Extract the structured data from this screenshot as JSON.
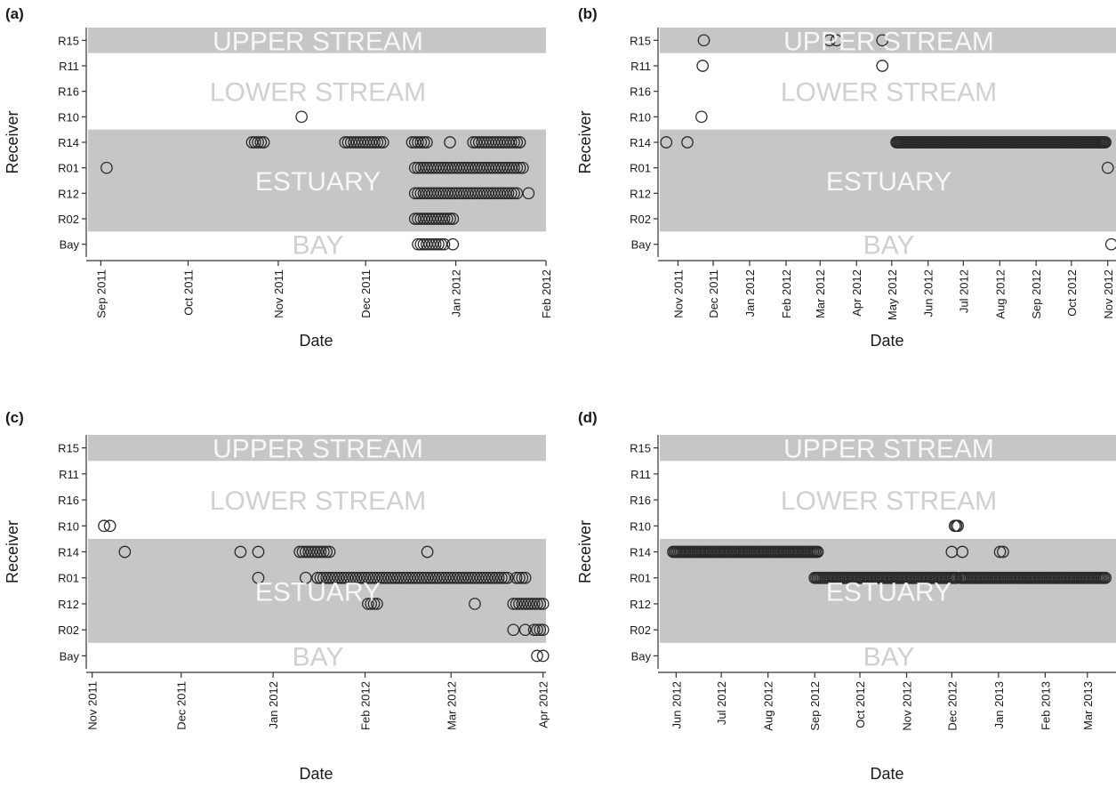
{
  "chart_data": [
    {
      "panel": "(a)",
      "type": "scatter",
      "x_scale": "time",
      "xlabel": "Date",
      "ylabel": "Receiver",
      "receivers": [
        "R15",
        "R11",
        "R16",
        "R10",
        "R14",
        "R01",
        "R12",
        "R02",
        "Bay"
      ],
      "zones": [
        {
          "label": "UPPER STREAM",
          "receivers": [
            "R15"
          ],
          "shaded": true
        },
        {
          "label": "LOWER STREAM",
          "receivers": [
            "R11",
            "R16",
            "R10"
          ],
          "shaded": false
        },
        {
          "label": "ESTUARY",
          "receivers": [
            "R14",
            "R01",
            "R12",
            "R02"
          ],
          "shaded": true
        },
        {
          "label": "BAY",
          "receivers": [
            "Bay"
          ],
          "shaded": false
        }
      ],
      "xlim": [
        "2011-08-27",
        "2012-02-01"
      ],
      "x_ticks": [
        {
          "date": "2011-09-01",
          "label": "Sep 2011"
        },
        {
          "date": "2011-10-01",
          "label": "Oct 2011"
        },
        {
          "date": "2011-11-01",
          "label": "Nov 2011"
        },
        {
          "date": "2011-12-01",
          "label": "Dec 2011"
        },
        {
          "date": "2012-01-01",
          "label": "Jan 2012"
        },
        {
          "date": "2012-02-01",
          "label": "Feb 2012"
        }
      ],
      "points": [
        {
          "receiver": "R01",
          "dates": [
            "2011-09-03"
          ]
        },
        {
          "receiver": "R10",
          "dates": [
            "2011-11-09"
          ]
        },
        {
          "receiver": "R14",
          "ranges": [
            [
              "2011-10-23",
              "2011-10-27"
            ],
            [
              "2011-11-24",
              "2011-12-07"
            ],
            [
              "2011-12-17",
              "2011-12-22"
            ],
            [
              "2012-01-07",
              "2012-01-23"
            ]
          ],
          "dates": [
            "2011-12-30"
          ]
        },
        {
          "receiver": "R01",
          "ranges": [
            [
              "2011-12-18",
              "2012-01-24"
            ]
          ]
        },
        {
          "receiver": "R12",
          "ranges": [
            [
              "2011-12-18",
              "2012-01-22"
            ]
          ],
          "dates": [
            "2012-01-26"
          ]
        },
        {
          "receiver": "R02",
          "ranges": [
            [
              "2011-12-18",
              "2011-12-31"
            ]
          ]
        },
        {
          "receiver": "Bay",
          "ranges": [
            [
              "2011-12-19",
              "2011-12-28"
            ]
          ],
          "dates": [
            "2011-12-31"
          ]
        }
      ]
    },
    {
      "panel": "(b)",
      "type": "scatter",
      "x_scale": "time",
      "xlabel": "Date",
      "ylabel": "Receiver",
      "receivers": [
        "R15",
        "R11",
        "R16",
        "R10",
        "R14",
        "R01",
        "R12",
        "R02",
        "Bay"
      ],
      "zones": [
        {
          "label": "UPPER STREAM",
          "receivers": [
            "R15"
          ],
          "shaded": true
        },
        {
          "label": "LOWER STREAM",
          "receivers": [
            "R11",
            "R16",
            "R10"
          ],
          "shaded": false
        },
        {
          "label": "ESTUARY",
          "receivers": [
            "R14",
            "R01",
            "R12",
            "R02"
          ],
          "shaded": true
        },
        {
          "label": "BAY",
          "receivers": [
            "Bay"
          ],
          "shaded": false
        }
      ],
      "xlim": [
        "2011-10-15",
        "2012-11-08"
      ],
      "x_ticks": [
        {
          "date": "2011-11-01",
          "label": "Nov 2011"
        },
        {
          "date": "2011-12-01",
          "label": "Dec 2011"
        },
        {
          "date": "2012-01-01",
          "label": "Jan 2012"
        },
        {
          "date": "2012-02-01",
          "label": "Feb 2012"
        },
        {
          "date": "2012-03-01",
          "label": "Mar 2012"
        },
        {
          "date": "2012-04-01",
          "label": "Apr 2012"
        },
        {
          "date": "2012-05-01",
          "label": "May 2012"
        },
        {
          "date": "2012-06-01",
          "label": "Jun 2012"
        },
        {
          "date": "2012-07-01",
          "label": "Jul 2012"
        },
        {
          "date": "2012-08-01",
          "label": "Aug 2012"
        },
        {
          "date": "2012-09-01",
          "label": "Sep 2012"
        },
        {
          "date": "2012-10-01",
          "label": "Oct 2012"
        },
        {
          "date": "2012-11-01",
          "label": "Nov 2012"
        }
      ],
      "points": [
        {
          "receiver": "R15",
          "dates": [
            "2011-11-23",
            "2012-03-09",
            "2012-03-15",
            "2012-04-23"
          ]
        },
        {
          "receiver": "R11",
          "dates": [
            "2011-11-22",
            "2012-04-23"
          ]
        },
        {
          "receiver": "R10",
          "dates": [
            "2011-11-21"
          ]
        },
        {
          "receiver": "R14",
          "dates": [
            "2011-10-22",
            "2011-11-09"
          ],
          "ranges": [
            [
              "2012-05-05",
              "2012-10-30"
            ]
          ]
        },
        {
          "receiver": "R01",
          "dates": [
            "2012-11-01"
          ]
        },
        {
          "receiver": "Bay",
          "dates": [
            "2012-11-04"
          ]
        }
      ]
    },
    {
      "panel": "(c)",
      "type": "scatter",
      "x_scale": "time",
      "xlabel": "Date",
      "ylabel": "Receiver",
      "receivers": [
        "R15",
        "R11",
        "R16",
        "R10",
        "R14",
        "R01",
        "R12",
        "R02",
        "Bay"
      ],
      "zones": [
        {
          "label": "UPPER STREAM",
          "receivers": [
            "R15"
          ],
          "shaded": true
        },
        {
          "label": "LOWER STREAM",
          "receivers": [
            "R11",
            "R16",
            "R10"
          ],
          "shaded": false
        },
        {
          "label": "ESTUARY",
          "receivers": [
            "R14",
            "R01",
            "R12",
            "R02"
          ],
          "shaded": true
        },
        {
          "label": "BAY",
          "receivers": [
            "Bay"
          ],
          "shaded": false
        }
      ],
      "xlim": [
        "2011-10-30",
        "2012-04-02"
      ],
      "x_ticks": [
        {
          "date": "2011-11-01",
          "label": "Nov 2011"
        },
        {
          "date": "2011-12-01",
          "label": "Dec 2011"
        },
        {
          "date": "2012-01-01",
          "label": "Jan 2012"
        },
        {
          "date": "2012-02-01",
          "label": "Feb 2012"
        },
        {
          "date": "2012-03-01",
          "label": "Mar 2012"
        },
        {
          "date": "2012-04-01",
          "label": "Apr 2012"
        }
      ],
      "points": [
        {
          "receiver": "R10",
          "dates": [
            "2011-11-05",
            "2011-11-07"
          ]
        },
        {
          "receiver": "R14",
          "dates": [
            "2011-11-12",
            "2011-12-21",
            "2011-12-27",
            "2012-02-22"
          ],
          "ranges": [
            [
              "2012-01-10",
              "2012-01-20"
            ]
          ]
        },
        {
          "receiver": "R01",
          "dates": [
            "2011-12-27",
            "2012-01-12"
          ],
          "ranges": [
            [
              "2012-01-16",
              "2012-03-20"
            ],
            [
              "2012-03-23",
              "2012-03-26"
            ]
          ]
        },
        {
          "receiver": "R12",
          "ranges": [
            [
              "2012-02-02",
              "2012-02-05"
            ],
            [
              "2012-03-22",
              "2012-04-01"
            ]
          ],
          "dates": [
            "2012-03-09"
          ]
        },
        {
          "receiver": "R02",
          "dates": [
            "2012-03-22",
            "2012-03-26"
          ],
          "ranges": [
            [
              "2012-03-29",
              "2012-04-01"
            ]
          ]
        },
        {
          "receiver": "Bay",
          "dates": [
            "2012-03-30",
            "2012-04-01"
          ]
        }
      ]
    },
    {
      "panel": "(d)",
      "type": "scatter",
      "x_scale": "time",
      "xlabel": "Date",
      "ylabel": "Receiver",
      "receivers": [
        "R15",
        "R11",
        "R16",
        "R10",
        "R14",
        "R01",
        "R12",
        "R02",
        "Bay"
      ],
      "zones": [
        {
          "label": "UPPER STREAM",
          "receivers": [
            "R15"
          ],
          "shaded": true
        },
        {
          "label": "LOWER STREAM",
          "receivers": [
            "R11",
            "R16",
            "R10"
          ],
          "shaded": false
        },
        {
          "label": "ESTUARY",
          "receivers": [
            "R14",
            "R01",
            "R12",
            "R02"
          ],
          "shaded": true
        },
        {
          "label": "BAY",
          "receivers": [
            "Bay"
          ],
          "shaded": false
        }
      ],
      "xlim": [
        "2012-05-20",
        "2013-03-20"
      ],
      "x_ticks": [
        {
          "date": "2012-06-01",
          "label": "Jun 2012"
        },
        {
          "date": "2012-07-01",
          "label": "Jul 2012"
        },
        {
          "date": "2012-08-01",
          "label": "Aug 2012"
        },
        {
          "date": "2012-09-01",
          "label": "Sep 2012"
        },
        {
          "date": "2012-10-01",
          "label": "Oct 2012"
        },
        {
          "date": "2012-11-01",
          "label": "Nov 2012"
        },
        {
          "date": "2012-12-01",
          "label": "Dec 2012"
        },
        {
          "date": "2013-01-01",
          "label": "Jan 2013"
        },
        {
          "date": "2013-02-01",
          "label": "Feb 2013"
        },
        {
          "date": "2013-03-01",
          "label": "Mar 2013"
        }
      ],
      "points": [
        {
          "receiver": "R10",
          "dates": [
            "2012-12-03",
            "2012-12-04",
            "2012-12-05"
          ]
        },
        {
          "receiver": "R14",
          "ranges": [
            [
              "2012-05-30",
              "2012-09-03"
            ]
          ],
          "dates": [
            "2012-12-01",
            "2012-12-08",
            "2013-01-02",
            "2013-01-04"
          ]
        },
        {
          "receiver": "R01",
          "ranges": [
            [
              "2012-09-01",
              "2012-12-04"
            ],
            [
              "2012-12-07",
              "2013-03-13"
            ]
          ]
        }
      ]
    }
  ]
}
